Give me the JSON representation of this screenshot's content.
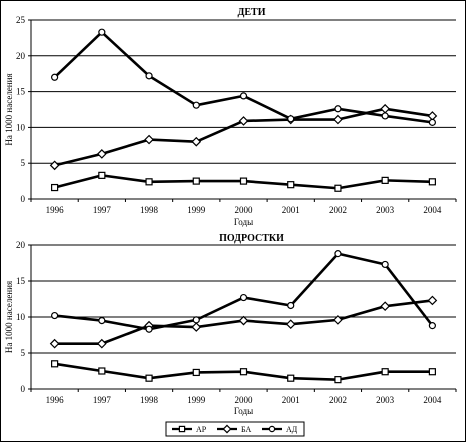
{
  "chart_data": [
    {
      "type": "line",
      "title": "ДЕТИ",
      "xlabel": "Годы",
      "ylabel": "На 1000 населения",
      "categories": [
        "1996",
        "1997",
        "1998",
        "1999",
        "2000",
        "2001",
        "2002",
        "2003",
        "2004"
      ],
      "ylim": [
        0,
        25
      ],
      "yticks": [
        "0",
        "5",
        "10",
        "15",
        "20",
        "25"
      ],
      "grid": "horizontal",
      "series": [
        {
          "name": "АР",
          "marker": "square",
          "values": [
            1.6,
            3.3,
            2.4,
            2.5,
            2.5,
            2.0,
            1.5,
            2.6,
            2.4
          ]
        },
        {
          "name": "БА",
          "marker": "diamond",
          "values": [
            4.7,
            6.3,
            8.3,
            8.0,
            10.9,
            11.1,
            11.1,
            12.6,
            11.6
          ]
        },
        {
          "name": "АД",
          "marker": "circle",
          "values": [
            17.0,
            23.3,
            17.2,
            13.1,
            14.4,
            11.2,
            12.6,
            11.6,
            10.7
          ]
        }
      ]
    },
    {
      "type": "line",
      "title": "ПОДРОСТКИ",
      "xlabel": "Годы",
      "ylabel": "На 1000 населения",
      "categories": [
        "1996",
        "1997",
        "1998",
        "1999",
        "2000",
        "2001",
        "2002",
        "2003",
        "2004"
      ],
      "ylim": [
        0,
        20
      ],
      "yticks": [
        "0",
        "5",
        "10",
        "15",
        "20"
      ],
      "grid": "horizontal",
      "series": [
        {
          "name": "АР",
          "marker": "square",
          "values": [
            3.5,
            2.5,
            1.5,
            2.3,
            2.4,
            1.5,
            1.3,
            2.4,
            2.4
          ]
        },
        {
          "name": "БА",
          "marker": "diamond",
          "values": [
            6.3,
            6.3,
            8.8,
            8.6,
            9.5,
            9.0,
            9.6,
            11.5,
            12.3
          ]
        },
        {
          "name": "АД",
          "marker": "circle",
          "values": [
            10.2,
            9.5,
            8.3,
            9.6,
            12.7,
            11.6,
            18.8,
            17.3,
            8.8
          ]
        }
      ]
    }
  ],
  "legend": {
    "placement": "bottom-center",
    "items": [
      {
        "label": "АР",
        "marker": "square"
      },
      {
        "label": "БА",
        "marker": "diamond"
      },
      {
        "label": "АД",
        "marker": "circle"
      }
    ]
  },
  "colors": {
    "line": "#000000",
    "marker_fill": "#ffffff",
    "grid": "#000000"
  }
}
